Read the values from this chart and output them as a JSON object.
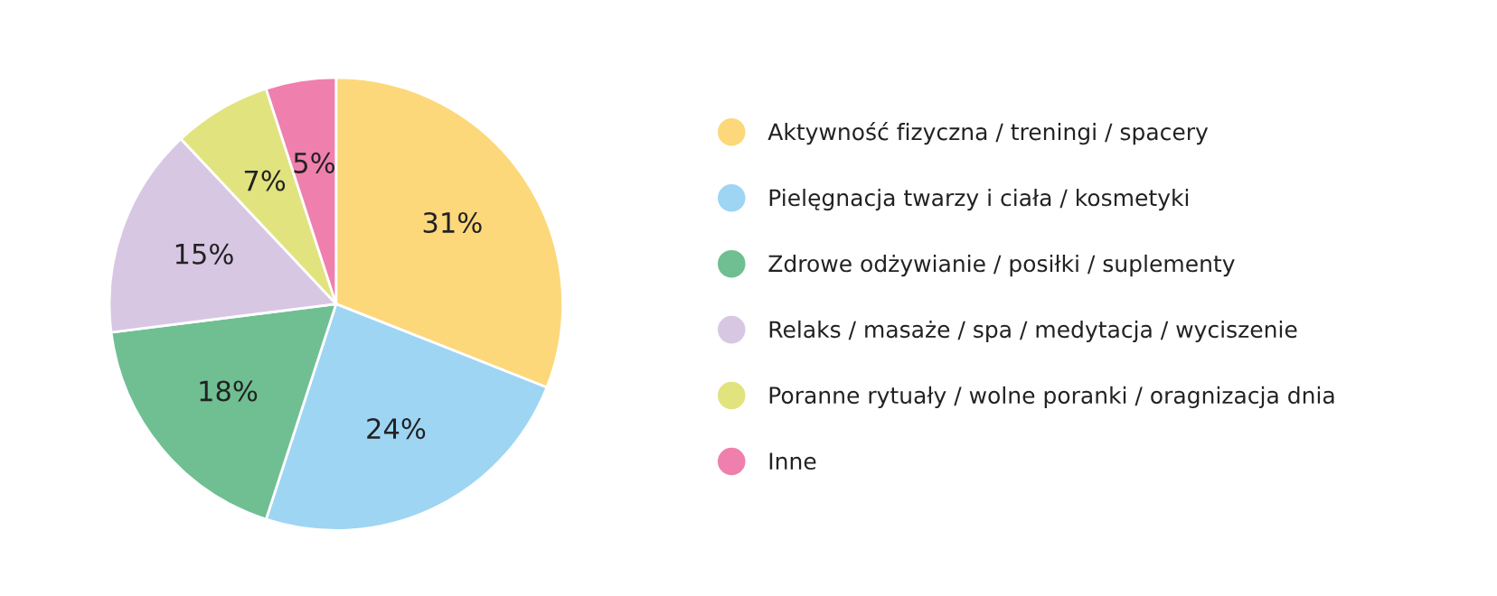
{
  "chart_data": {
    "type": "pie",
    "categories": [
      "Aktywność fizyczna / treningi / spacery",
      "Pielęgnacja twarzy i ciała / kosmetyki",
      "Zdrowe odżywianie / posiłki / suplementy",
      "Relaks / masaże / spa / medytacja / wyciszenie",
      "Poranne rytuały / wolne poranki / oragnizacja dnia",
      "Inne"
    ],
    "values": [
      31,
      24,
      18,
      15,
      7,
      5
    ],
    "colors": [
      "#fcd87a",
      "#9ed5f3",
      "#6fbf92",
      "#d8c7e3",
      "#e1e37e",
      "#ef80ad"
    ],
    "value_labels": [
      "31%",
      "24%",
      "18%",
      "15%",
      "7%",
      "5%"
    ],
    "legend": "right"
  }
}
